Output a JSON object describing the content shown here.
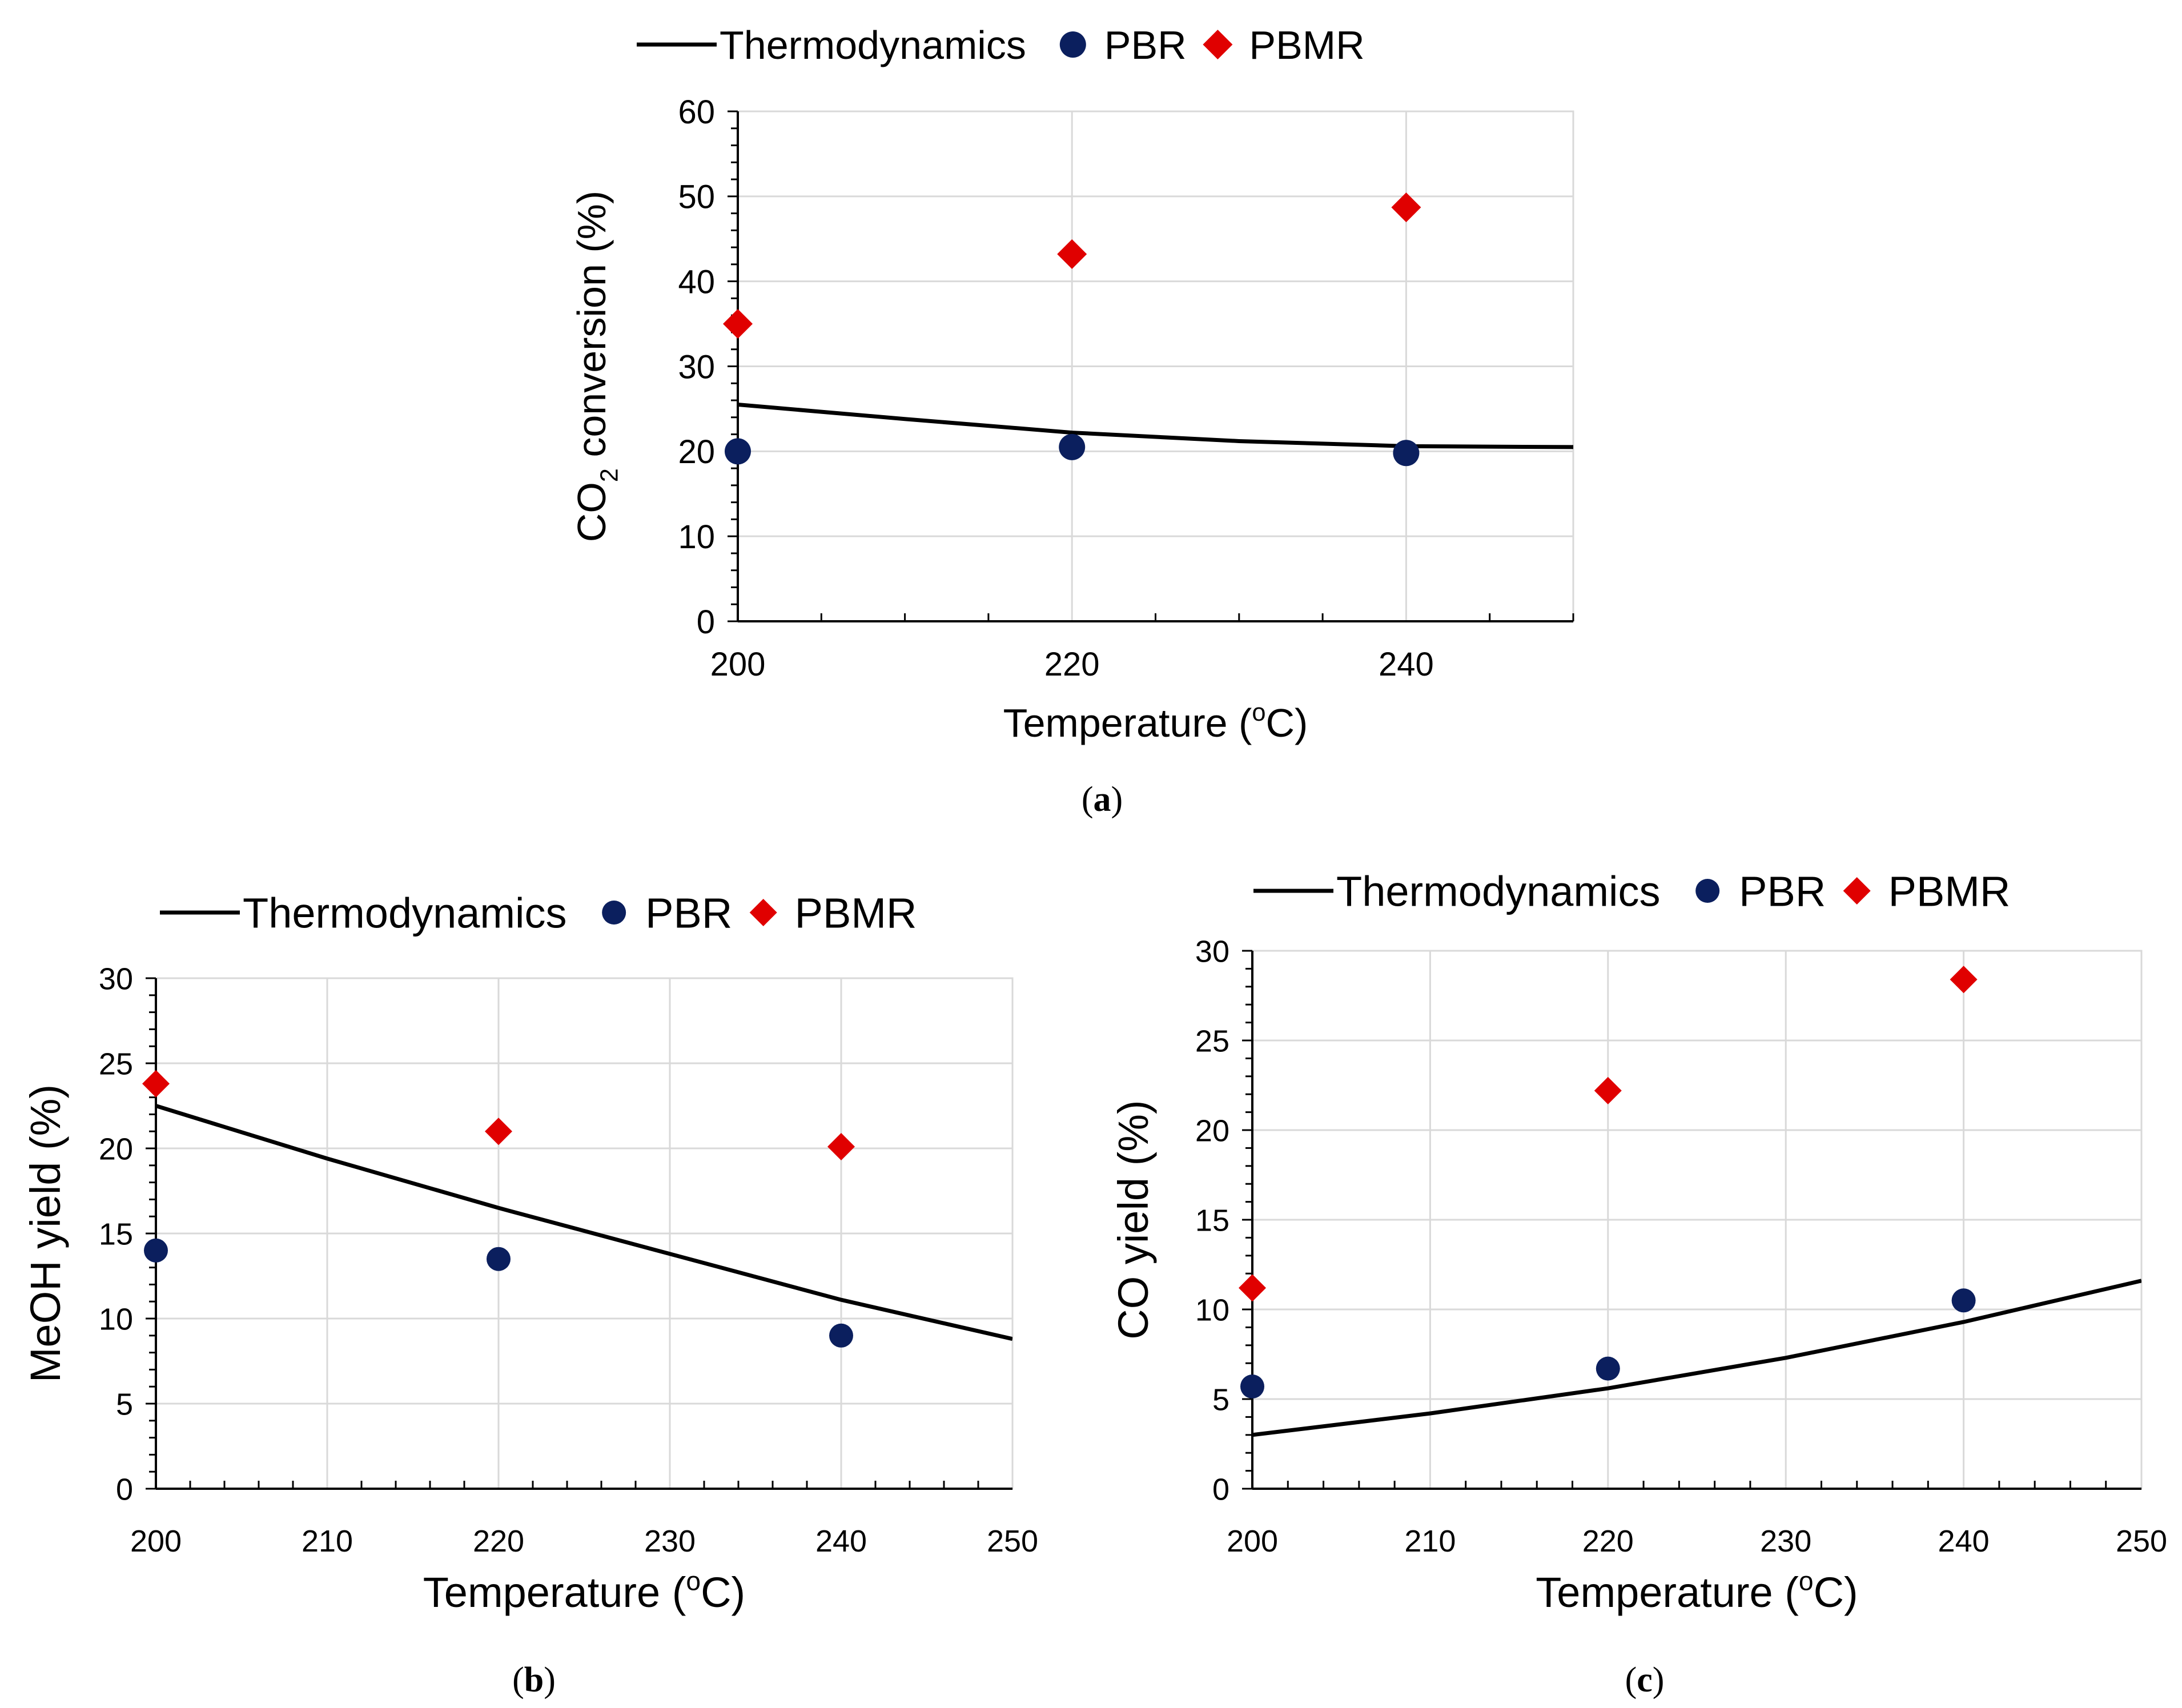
{
  "figure": {
    "panel_labels": [
      "(a)",
      "(b)",
      "(c)"
    ]
  },
  "chart_data": [
    {
      "type": "line+scatter",
      "panel": "(a)",
      "title": "",
      "xlabel": "Temperature (ºC)",
      "ylabel": "CO2 conversion (%)",
      "ylabel_parts": {
        "main": "CO",
        "sub": "2",
        "rest": " conversion (%)"
      },
      "xlabel_parts": {
        "main": "Temperature (",
        "sup": "o",
        "rest": "C)"
      },
      "xlim": [
        200,
        250
      ],
      "ylim": [
        0,
        60
      ],
      "xticks": [
        200,
        220,
        240
      ],
      "yticks": [
        0,
        10,
        20,
        30,
        40,
        50,
        60
      ],
      "xgrid": [
        220,
        240
      ],
      "legend": [
        "Thermodynamics",
        "PBR",
        "PBMR"
      ],
      "legend_position": "top",
      "series": [
        {
          "name": "Thermodynamics",
          "kind": "line",
          "color": "#000000",
          "x": [
            200,
            210,
            220,
            230,
            240,
            250
          ],
          "y": [
            25.5,
            23.8,
            22.2,
            21.2,
            20.6,
            20.5
          ]
        },
        {
          "name": "PBR",
          "kind": "circle",
          "color": "#0b1f5e",
          "x": [
            200,
            220,
            240
          ],
          "y": [
            20.0,
            20.5,
            19.8
          ]
        },
        {
          "name": "PBMR",
          "kind": "diamond",
          "color": "#e00000",
          "x": [
            200,
            220,
            240
          ],
          "y": [
            35.0,
            43.2,
            48.7
          ]
        }
      ]
    },
    {
      "type": "line+scatter",
      "panel": "(b)",
      "title": "",
      "xlabel": "Temperature (ºC)",
      "ylabel": "MeOH yield (%)",
      "xlabel_parts": {
        "main": "Temperature (",
        "sup": "o",
        "rest": "C)"
      },
      "xlim": [
        200,
        250
      ],
      "ylim": [
        0,
        30
      ],
      "xticks": [
        200,
        210,
        220,
        230,
        240,
        250
      ],
      "yticks": [
        0,
        5,
        10,
        15,
        20,
        25,
        30
      ],
      "xgrid": [
        210,
        220,
        230,
        240
      ],
      "legend": [
        "Thermodynamics",
        "PBR",
        "PBMR"
      ],
      "legend_position": "top",
      "series": [
        {
          "name": "Thermodynamics",
          "kind": "line",
          "color": "#000000",
          "x": [
            200,
            210,
            220,
            230,
            240,
            250
          ],
          "y": [
            22.5,
            19.4,
            16.5,
            13.8,
            11.1,
            8.8
          ]
        },
        {
          "name": "PBR",
          "kind": "circle",
          "color": "#0b1f5e",
          "x": [
            200,
            220,
            240
          ],
          "y": [
            14.0,
            13.5,
            9.0
          ]
        },
        {
          "name": "PBMR",
          "kind": "diamond",
          "color": "#e00000",
          "x": [
            200,
            220,
            240
          ],
          "y": [
            23.8,
            21.0,
            20.1
          ]
        }
      ]
    },
    {
      "type": "line+scatter",
      "panel": "(c)",
      "title": "",
      "xlabel": "Temperature (ºC)",
      "ylabel": "CO yield (%)",
      "xlabel_parts": {
        "main": "Temperature (",
        "sup": "o",
        "rest": "C)"
      },
      "xlim": [
        200,
        250
      ],
      "ylim": [
        0,
        30
      ],
      "xticks": [
        200,
        210,
        220,
        230,
        240,
        250
      ],
      "yticks": [
        0,
        5,
        10,
        15,
        20,
        25,
        30
      ],
      "xgrid": [
        210,
        220,
        230,
        240
      ],
      "legend": [
        "Thermodynamics",
        "PBR",
        "PBMR"
      ],
      "legend_position": "top",
      "series": [
        {
          "name": "Thermodynamics",
          "kind": "line",
          "color": "#000000",
          "x": [
            200,
            210,
            220,
            230,
            240,
            250
          ],
          "y": [
            3.0,
            4.2,
            5.6,
            7.3,
            9.3,
            11.6
          ]
        },
        {
          "name": "PBR",
          "kind": "circle",
          "color": "#0b1f5e",
          "x": [
            200,
            220,
            240
          ],
          "y": [
            5.7,
            6.7,
            10.5
          ]
        },
        {
          "name": "PBMR",
          "kind": "diamond",
          "color": "#e00000",
          "x": [
            200,
            220,
            240
          ],
          "y": [
            11.2,
            22.2,
            28.4
          ]
        }
      ]
    }
  ]
}
